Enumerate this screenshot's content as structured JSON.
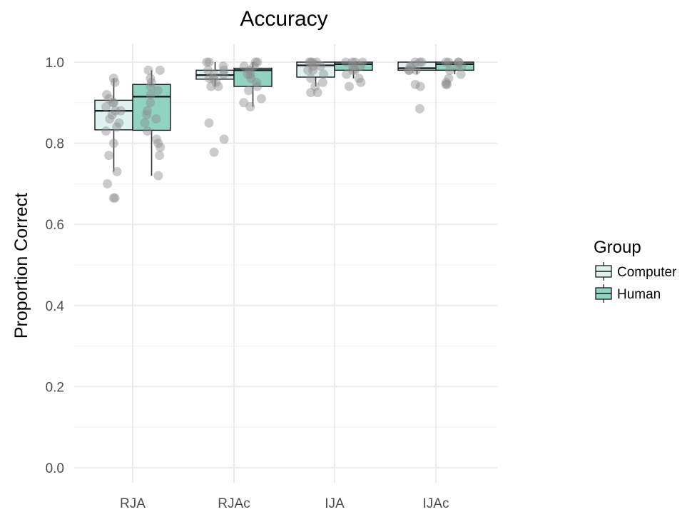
{
  "chart_data": {
    "type": "boxplot",
    "title": "Accuracy",
    "xlabel": "",
    "ylabel": "Proportion Correct",
    "ylim": [
      -0.05,
      1.05
    ],
    "y_ticks": [
      "0.0",
      "0.2",
      "0.4",
      "0.6",
      "0.8",
      "1.0"
    ],
    "y_tick_values": [
      0.0,
      0.2,
      0.4,
      0.6,
      0.8,
      1.0
    ],
    "categories": [
      "RJA",
      "RJAc",
      "IJA",
      "IJAc"
    ],
    "grid": true,
    "legend": {
      "title": "Group",
      "position": "right"
    },
    "series": [
      {
        "name": "Computer",
        "fill": "#dff2f0",
        "boxes": [
          {
            "category": "RJA",
            "whisker_low": 0.73,
            "q1": 0.833,
            "median": 0.88,
            "q3": 0.906,
            "whisker_high": 0.96,
            "points": [
              0.96,
              0.95,
              0.92,
              0.91,
              0.9,
              0.9,
              0.89,
              0.88,
              0.88,
              0.87,
              0.86,
              0.85,
              0.84,
              0.83,
              0.8,
              0.77,
              0.73,
              0.7,
              0.665,
              0.665
            ]
          },
          {
            "category": "RJAc",
            "whisker_low": 0.94,
            "q1": 0.958,
            "median": 0.968,
            "q3": 0.98,
            "whisker_high": 1.0,
            "points": [
              1.0,
              1.0,
              0.99,
              0.98,
              0.98,
              0.97,
              0.97,
              0.96,
              0.96,
              0.95,
              0.94,
              0.94,
              0.85,
              0.81,
              0.778
            ]
          },
          {
            "category": "IJA",
            "whisker_low": 0.94,
            "q1": 0.963,
            "median": 0.992,
            "q3": 1.0,
            "whisker_high": 1.0,
            "points": [
              1.0,
              1.0,
              1.0,
              1.0,
              0.99,
              0.99,
              0.98,
              0.98,
              0.97,
              0.96,
              0.95,
              0.94,
              0.925,
              0.925
            ]
          },
          {
            "category": "IJAc",
            "whisker_low": 0.97,
            "q1": 0.98,
            "median": 0.985,
            "q3": 1.0,
            "whisker_high": 1.0,
            "points": [
              1.0,
              1.0,
              1.0,
              0.99,
              0.99,
              0.98,
              0.98,
              0.98,
              0.945,
              0.94,
              0.885
            ]
          }
        ]
      },
      {
        "name": "Human",
        "fill": "#8fd3c0",
        "boxes": [
          {
            "category": "RJA",
            "whisker_low": 0.72,
            "q1": 0.832,
            "median": 0.915,
            "q3": 0.945,
            "whisker_high": 0.98,
            "points": [
              0.98,
              0.98,
              0.96,
              0.95,
              0.94,
              0.93,
              0.92,
              0.9,
              0.88,
              0.87,
              0.86,
              0.85,
              0.83,
              0.81,
              0.8,
              0.79,
              0.77,
              0.72
            ]
          },
          {
            "category": "RJAc",
            "whisker_low": 0.89,
            "q1": 0.94,
            "median": 0.98,
            "q3": 0.985,
            "whisker_high": 1.0,
            "points": [
              1.0,
              1.0,
              0.99,
              0.99,
              0.98,
              0.97,
              0.97,
              0.96,
              0.95,
              0.94,
              0.93,
              0.91,
              0.9,
              0.89
            ]
          },
          {
            "category": "IJA",
            "whisker_low": 0.96,
            "q1": 0.98,
            "median": 0.995,
            "q3": 1.0,
            "whisker_high": 1.0,
            "points": [
              1.0,
              1.0,
              1.0,
              1.0,
              0.99,
              0.99,
              0.98,
              0.98,
              0.97,
              0.96,
              0.95,
              0.94
            ]
          },
          {
            "category": "IJAc",
            "whisker_low": 0.97,
            "q1": 0.98,
            "median": 0.995,
            "q3": 1.0,
            "whisker_high": 1.0,
            "points": [
              1.0,
              1.0,
              1.0,
              1.0,
              0.99,
              0.99,
              0.98,
              0.97,
              0.96,
              0.95,
              0.945,
              0.945
            ]
          }
        ]
      }
    ],
    "colors": {
      "grid": "#ebebeb",
      "box_stroke": "#1a1a1a",
      "point": "#8c8c8c",
      "text": "#4d4d4d",
      "title": "#000000"
    }
  }
}
